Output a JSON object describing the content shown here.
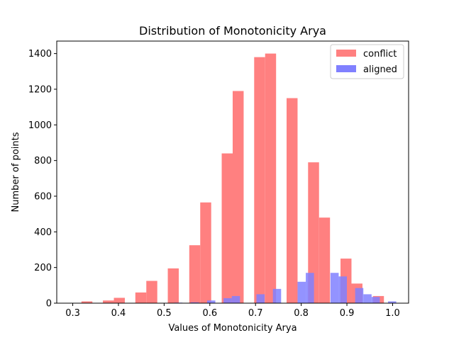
{
  "chart_data": {
    "type": "bar",
    "title": "Distribution of Monotonicity Arya",
    "xlabel": "Values of Monotonicity Arya",
    "ylabel": "Number of points",
    "xlim": [
      0.265,
      1.035
    ],
    "ylim": [
      0,
      1470
    ],
    "xticks": [
      0.3,
      0.4,
      0.5,
      0.6,
      0.7,
      0.8,
      0.9,
      1.0
    ],
    "xtick_labels": [
      "0.3",
      "0.4",
      "0.5",
      "0.6",
      "0.7",
      "0.8",
      "0.9",
      "1.0"
    ],
    "yticks": [
      0,
      200,
      400,
      600,
      800,
      1000,
      1200,
      1400
    ],
    "ytick_labels": [
      "0",
      "200",
      "400",
      "600",
      "800",
      "1000",
      "1200",
      "1400"
    ],
    "grid": false,
    "legend_position": "top-right",
    "series": [
      {
        "name": "conflict",
        "color": "#ff8080",
        "bars": [
          {
            "x0": 0.319,
            "x1": 0.343,
            "value": 10
          },
          {
            "x0": 0.366,
            "x1": 0.39,
            "value": 15
          },
          {
            "x0": 0.39,
            "x1": 0.414,
            "value": 30
          },
          {
            "x0": 0.437,
            "x1": 0.461,
            "value": 60
          },
          {
            "x0": 0.461,
            "x1": 0.485,
            "value": 125
          },
          {
            "x0": 0.508,
            "x1": 0.532,
            "value": 195
          },
          {
            "x0": 0.555,
            "x1": 0.579,
            "value": 325
          },
          {
            "x0": 0.579,
            "x1": 0.603,
            "value": 565
          },
          {
            "x0": 0.626,
            "x1": 0.65,
            "value": 840
          },
          {
            "x0": 0.65,
            "x1": 0.674,
            "value": 1190
          },
          {
            "x0": 0.697,
            "x1": 0.721,
            "value": 1380
          },
          {
            "x0": 0.721,
            "x1": 0.745,
            "value": 1400
          },
          {
            "x0": 0.768,
            "x1": 0.792,
            "value": 1150
          },
          {
            "x0": 0.815,
            "x1": 0.839,
            "value": 790
          },
          {
            "x0": 0.839,
            "x1": 0.863,
            "value": 480
          },
          {
            "x0": 0.886,
            "x1": 0.91,
            "value": 250
          },
          {
            "x0": 0.91,
            "x1": 0.934,
            "value": 110
          },
          {
            "x0": 0.957,
            "x1": 0.981,
            "value": 40
          }
        ]
      },
      {
        "name": "aligned",
        "color": "#8080ff",
        "bars": [
          {
            "x0": 0.522,
            "x1": 0.54,
            "value": 3
          },
          {
            "x0": 0.558,
            "x1": 0.576,
            "value": 5
          },
          {
            "x0": 0.594,
            "x1": 0.612,
            "value": 15
          },
          {
            "x0": 0.63,
            "x1": 0.648,
            "value": 28
          },
          {
            "x0": 0.648,
            "x1": 0.666,
            "value": 40
          },
          {
            "x0": 0.702,
            "x1": 0.72,
            "value": 50
          },
          {
            "x0": 0.738,
            "x1": 0.756,
            "value": 80
          },
          {
            "x0": 0.792,
            "x1": 0.81,
            "value": 120
          },
          {
            "x0": 0.81,
            "x1": 0.828,
            "value": 170
          },
          {
            "x0": 0.864,
            "x1": 0.882,
            "value": 170
          },
          {
            "x0": 0.882,
            "x1": 0.9,
            "value": 150
          },
          {
            "x0": 0.918,
            "x1": 0.936,
            "value": 85
          },
          {
            "x0": 0.936,
            "x1": 0.954,
            "value": 50
          },
          {
            "x0": 0.954,
            "x1": 0.972,
            "value": 35
          },
          {
            "x0": 0.99,
            "x1": 1.008,
            "value": 10
          }
        ]
      }
    ]
  }
}
